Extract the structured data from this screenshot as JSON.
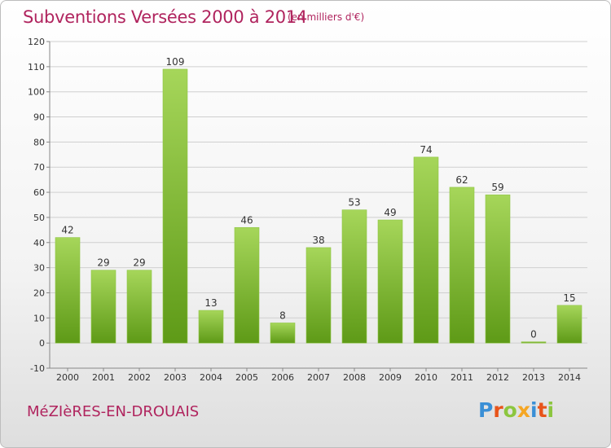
{
  "title": "Subventions Versées 2000 à 2014",
  "subtitle": "(en milliers d'€)",
  "commune": "MéZIèRES-EN-DROUAIS",
  "logo": {
    "text": "Proxiti",
    "colors": [
      "#3a8fd6",
      "#e8541a",
      "#8cc63f",
      "#f5a623",
      "#3a8fd6",
      "#e8541a",
      "#8cc63f"
    ]
  },
  "colors": {
    "bar_top": "#a6d65a",
    "bar_bottom": "#5e9a17",
    "title": "#b0245e",
    "grid": "#cfcfcf"
  },
  "chart_data": {
    "type": "bar",
    "title": "Subventions Versées 2000 à 2014",
    "subtitle": "(en milliers d'€)",
    "categories": [
      "2000",
      "2001",
      "2002",
      "2003",
      "2004",
      "2005",
      "2006",
      "2007",
      "2008",
      "2009",
      "2010",
      "2011",
      "2012",
      "2013",
      "2014"
    ],
    "values": [
      42,
      29,
      29,
      109,
      13,
      46,
      8,
      38,
      53,
      49,
      74,
      62,
      59,
      0,
      15
    ],
    "ylim": [
      -10,
      120
    ],
    "yticks": [
      -10,
      0,
      10,
      20,
      30,
      40,
      50,
      60,
      70,
      80,
      90,
      100,
      110,
      120
    ],
    "grid": true,
    "xlabel": "",
    "ylabel": ""
  }
}
